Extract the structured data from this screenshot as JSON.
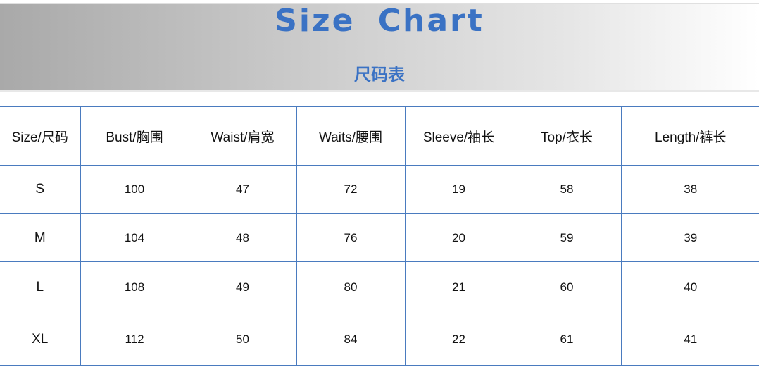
{
  "header": {
    "title": "Size Chart",
    "subtitle": "尺码表"
  },
  "colors": {
    "accent": "#3a72c4",
    "border": "#4a7bbf"
  },
  "table": {
    "columns": [
      "Size/尺码",
      "Bust/胸围",
      "Waist/肩宽",
      "Waits/腰围",
      "Sleeve/袖长",
      "Top/衣长",
      "Length/裤长"
    ],
    "rows": [
      [
        "S",
        "100",
        "47",
        "72",
        "19",
        "58",
        "38"
      ],
      [
        "M",
        "104",
        "48",
        "76",
        "20",
        "59",
        "39"
      ],
      [
        "L",
        "108",
        "49",
        "80",
        "21",
        "60",
        "40"
      ],
      [
        "XL",
        "112",
        "50",
        "84",
        "22",
        "61",
        "41"
      ]
    ]
  }
}
